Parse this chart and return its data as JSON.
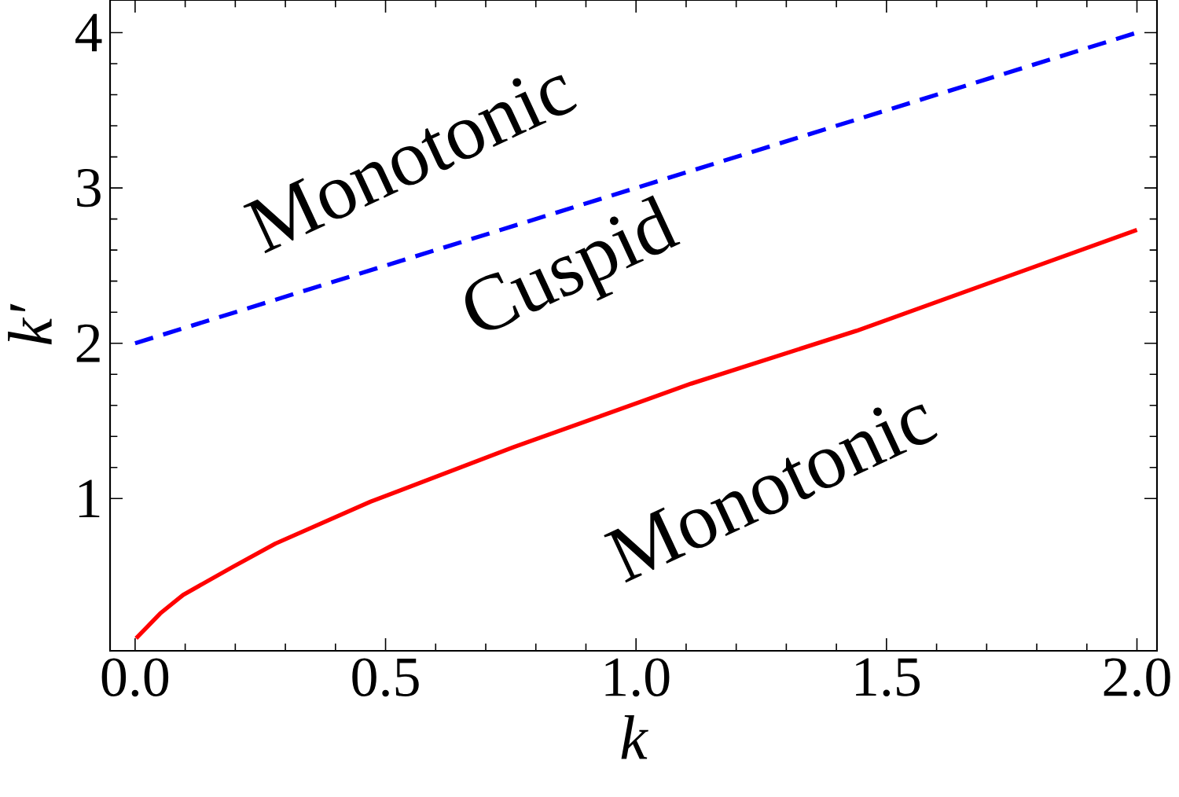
{
  "chart_data": {
    "type": "line",
    "xlabel": "k",
    "ylabel": "k′",
    "xlim": [
      -0.05,
      2.04
    ],
    "ylim": [
      0.02,
      4.21
    ],
    "xticks": [
      {
        "value": 0,
        "label": "0.0"
      },
      {
        "value": 0.5,
        "label": "0.5"
      },
      {
        "value": 1,
        "label": "1.0"
      },
      {
        "value": 1.5,
        "label": "1.5"
      },
      {
        "value": 2,
        "label": "2.0"
      }
    ],
    "yticks": [
      1,
      2,
      3,
      4
    ],
    "marker": "none",
    "annotations": [
      "Monotonic",
      "Cuspid",
      "Monotonic"
    ],
    "series": [
      {
        "color": "#ff0000",
        "line_style": "solid",
        "x": [
          0.002,
          0.05,
          0.096,
          0.195,
          0.28,
          0.47,
          0.755,
          0.92,
          1.11,
          1.44,
          2.0
        ],
        "values": [
          0.1,
          0.26,
          0.38,
          0.56,
          0.71,
          0.98,
          1.33,
          1.52,
          1.74,
          2.08,
          2.73
        ]
      },
      {
        "color": "#0000ff",
        "line_style": "dashed",
        "x": [
          0,
          2
        ],
        "values": [
          2,
          4
        ]
      }
    ]
  }
}
